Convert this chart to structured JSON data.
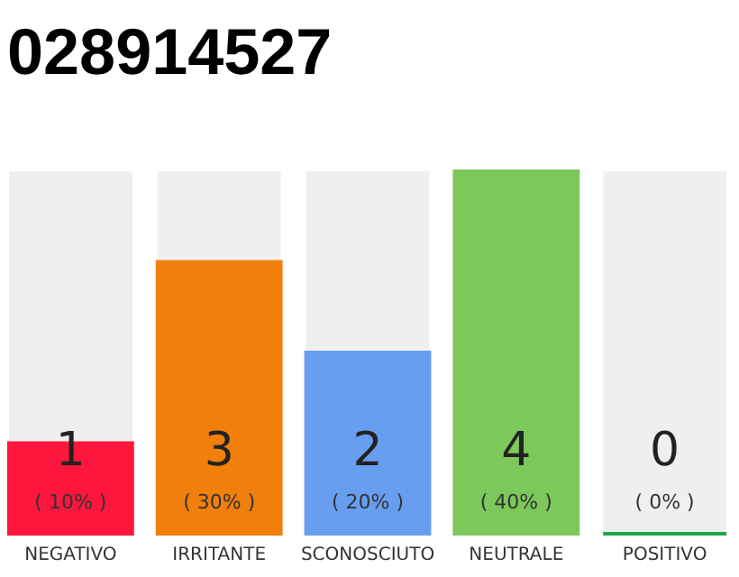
{
  "chart_data": {
    "type": "bar",
    "title": "028914527",
    "categories": [
      "NEGATIVO",
      "IRRITANTE",
      "SCONOSCIUTO",
      "NEUTRALE",
      "POSITIVO"
    ],
    "values": [
      1,
      3,
      2,
      4,
      0
    ],
    "colors": [
      "#ff163c",
      "#f07f0c",
      "#679ef0",
      "#7cc85a",
      "#1ea84a"
    ],
    "data_labels": true,
    "annotations": [
      "( 10% )",
      "( 30% )",
      "( 20% )",
      "( 40% )",
      "( 0% )"
    ],
    "tick_labels": "x"
  }
}
